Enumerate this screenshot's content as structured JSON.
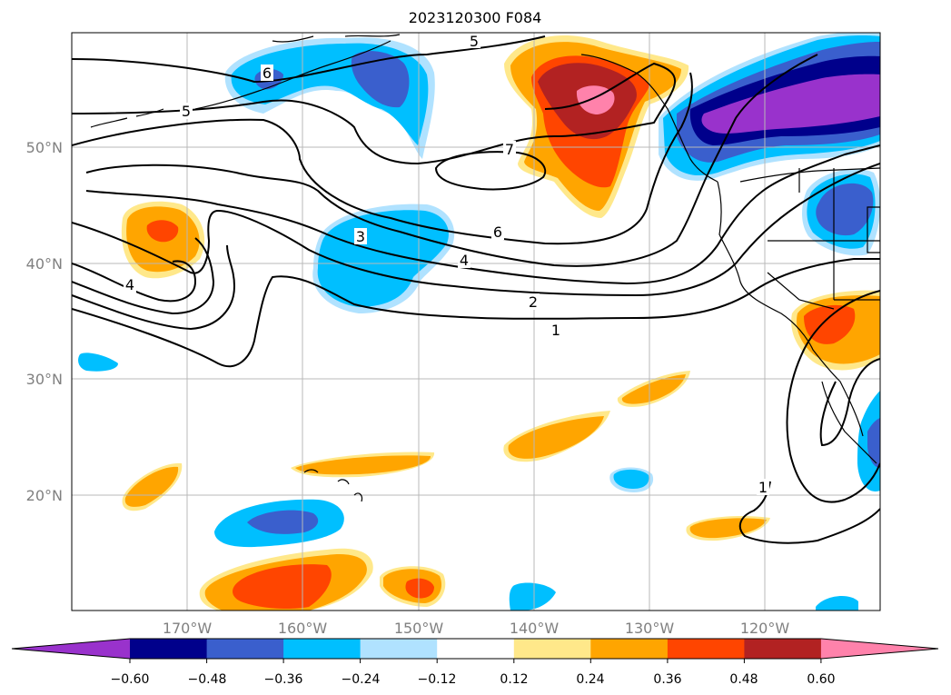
{
  "title": "2023120300 F084",
  "map": {
    "lon_labels": [
      "170°W",
      "160°W",
      "150°W",
      "140°W",
      "130°W",
      "120°W"
    ],
    "lat_labels": [
      "50°N",
      "40°N",
      "30°N",
      "20°N"
    ],
    "contour_labels": [
      "5",
      "6",
      "5",
      "7",
      "6",
      "4",
      "3",
      "4",
      "2",
      "1",
      "1"
    ]
  },
  "colorbar": {
    "ticks": [
      "−0.60",
      "−0.48",
      "−0.36",
      "−0.24",
      "−0.12",
      "0.12",
      "0.24",
      "0.36",
      "0.48",
      "0.60"
    ],
    "colors": [
      "#9932cc",
      "#00008b",
      "#3a5fcd",
      "#00bfff",
      "#b0e2ff",
      "#ffffff",
      "#ffe88a",
      "#ffa500",
      "#ff4500",
      "#b22222",
      "#ff82ab"
    ]
  }
}
